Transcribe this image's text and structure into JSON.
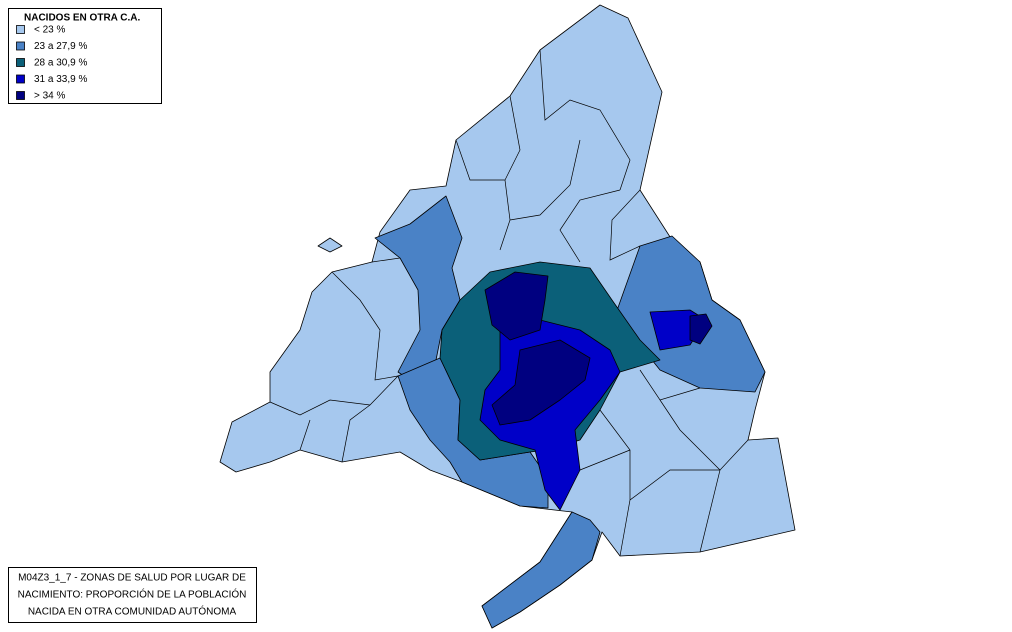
{
  "legend": {
    "title": "NACIDOS EN OTRA C.A.",
    "items": [
      {
        "label": "< 23  %",
        "color": "#a6c8ee"
      },
      {
        "label": "23 a 27,9 %",
        "color": "#4a82c6"
      },
      {
        "label": "28 a 30,9 %",
        "color": "#0b6079"
      },
      {
        "label": "31 a 33,9 %",
        "color": "#0000c8"
      },
      {
        "label": "> 34 %",
        "color": "#000080"
      }
    ]
  },
  "caption": {
    "lines": [
      "M04Z3_1_7 - ZONAS DE SALUD POR LUGAR DE",
      "NACIMIENTO: PROPORCIÓN DE LA POBLACIÓN",
      "NACIDA EN OTRA COMUNIDAD AUTÓNOMA"
    ]
  }
}
